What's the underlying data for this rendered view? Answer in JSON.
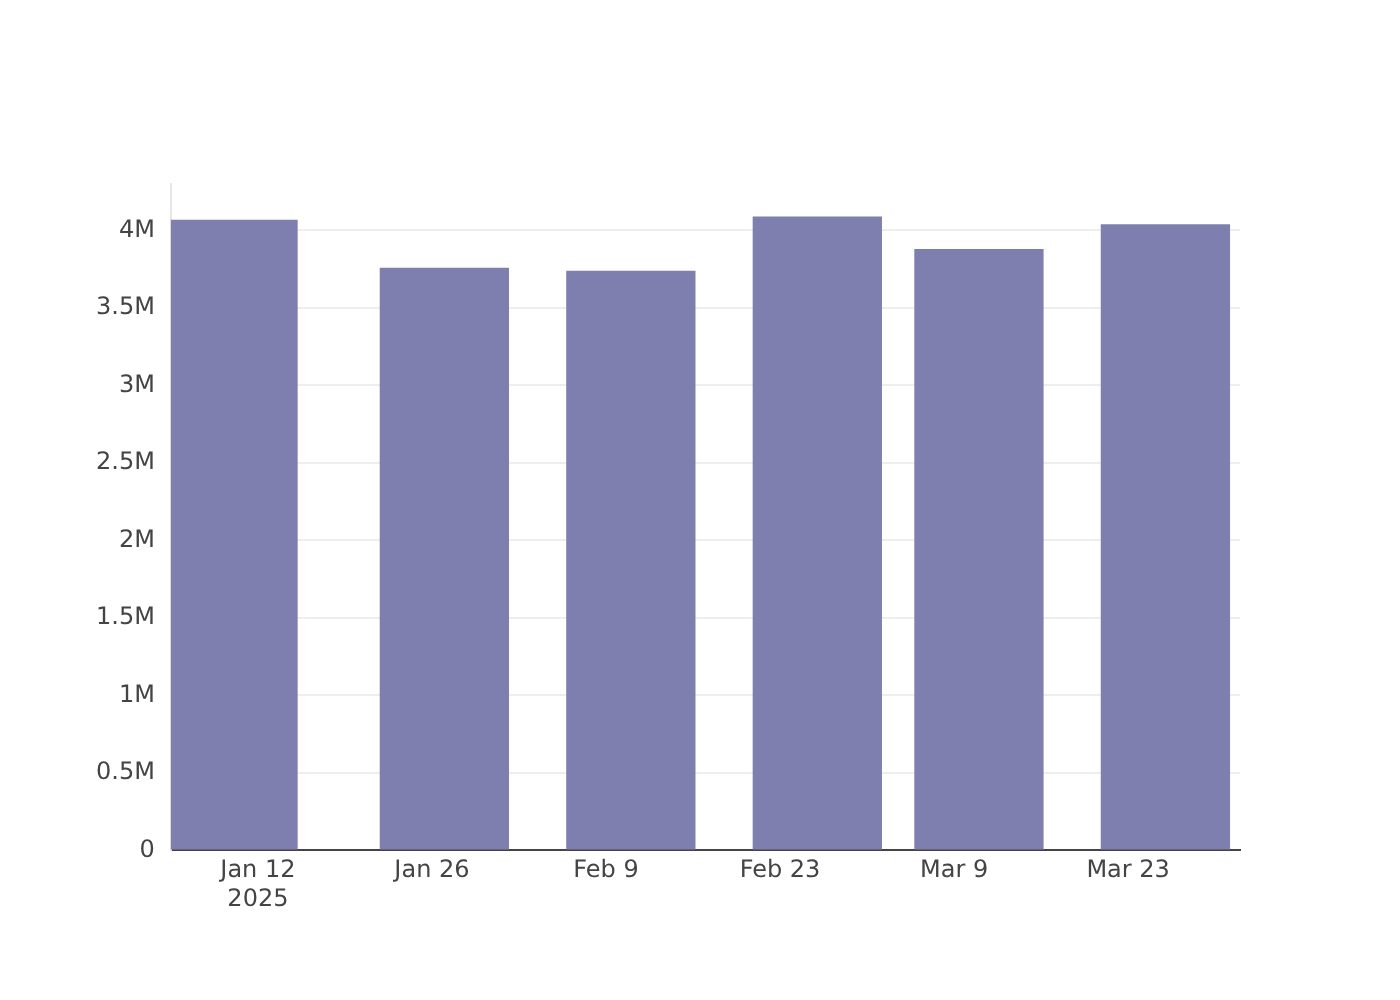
{
  "chart_data": {
    "type": "bar",
    "x": [
      "2025-01-10",
      "2025-01-27",
      "2025-02-11",
      "2025-02-26",
      "2025-03-11",
      "2025-03-26"
    ],
    "values": [
      4070000,
      3760000,
      3740000,
      4090000,
      3880000,
      4040000
    ],
    "color": "#7f7faf",
    "xlim": [
      "2025-01-05",
      "2025-04-01"
    ],
    "xticks": [
      {
        "value": "2025-01-12",
        "label": "Jan 12\n2025"
      },
      {
        "value": "2025-01-26",
        "label": "Jan 26"
      },
      {
        "value": "2025-02-09",
        "label": "Feb 9"
      },
      {
        "value": "2025-02-23",
        "label": "Feb 23"
      },
      {
        "value": "2025-03-09",
        "label": "Mar 9"
      },
      {
        "value": "2025-03-23",
        "label": "Mar 23"
      }
    ],
    "ylim": [
      0,
      4300000
    ],
    "yticks": [
      {
        "value": 0,
        "label": "0"
      },
      {
        "value": 500000,
        "label": "0.5M"
      },
      {
        "value": 1000000,
        "label": "1M"
      },
      {
        "value": 1500000,
        "label": "1.5M"
      },
      {
        "value": 2000000,
        "label": "2M"
      },
      {
        "value": 2500000,
        "label": "2.5M"
      },
      {
        "value": 3000000,
        "label": "3M"
      },
      {
        "value": 3500000,
        "label": "3.5M"
      },
      {
        "value": 4000000,
        "label": "4M"
      }
    ],
    "grid": "y"
  }
}
